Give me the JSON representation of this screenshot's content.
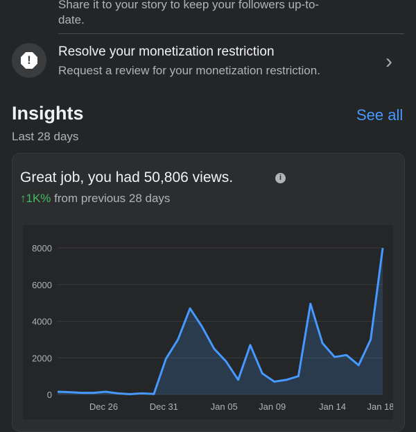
{
  "prev_item": {
    "description_line1": "Share it to your story to keep your followers up-to-",
    "description_line2": "date."
  },
  "monetization_item": {
    "title": "Resolve your monetization restriction",
    "description": "Request a review for your monetization restriction.",
    "icon": "alert-octagon-icon"
  },
  "insights": {
    "title": "Insights",
    "see_all": "See all",
    "period": "Last 28 days",
    "headline": "Great job, you had 50,806 views.",
    "change": "↑1K%",
    "change_suffix": "from previous 28 days",
    "change_color": "#45bd62",
    "accent": "#2d88ff"
  },
  "chart_data": {
    "type": "area",
    "ylim": [
      0,
      8000
    ],
    "yticks": [
      0,
      2000,
      4000,
      6000,
      8000
    ],
    "grid": true,
    "x_tick_labels": [
      "Dec 26",
      "Dec 31",
      "Jan 05",
      "Jan 09",
      "Jan 14",
      "Jan 18"
    ],
    "x": [
      "Dec 22",
      "Dec 23",
      "Dec 24",
      "Dec 25",
      "Dec 26",
      "Dec 27",
      "Dec 28",
      "Dec 29",
      "Dec 30",
      "Dec 31",
      "Jan 01",
      "Jan 02",
      "Jan 03",
      "Jan 04",
      "Jan 05",
      "Jan 06",
      "Jan 07",
      "Jan 08",
      "Jan 09",
      "Jan 10",
      "Jan 11",
      "Jan 12",
      "Jan 13",
      "Jan 14",
      "Jan 15",
      "Jan 16",
      "Jan 17",
      "Jan 18"
    ],
    "values": [
      150,
      130,
      90,
      90,
      150,
      60,
      20,
      60,
      30,
      1950,
      3000,
      4700,
      3700,
      2500,
      1800,
      800,
      2700,
      1150,
      700,
      800,
      1000,
      4950,
      2800,
      2050,
      2150,
      1600,
      3000,
      8000
    ],
    "line_color": "#4599ff"
  }
}
